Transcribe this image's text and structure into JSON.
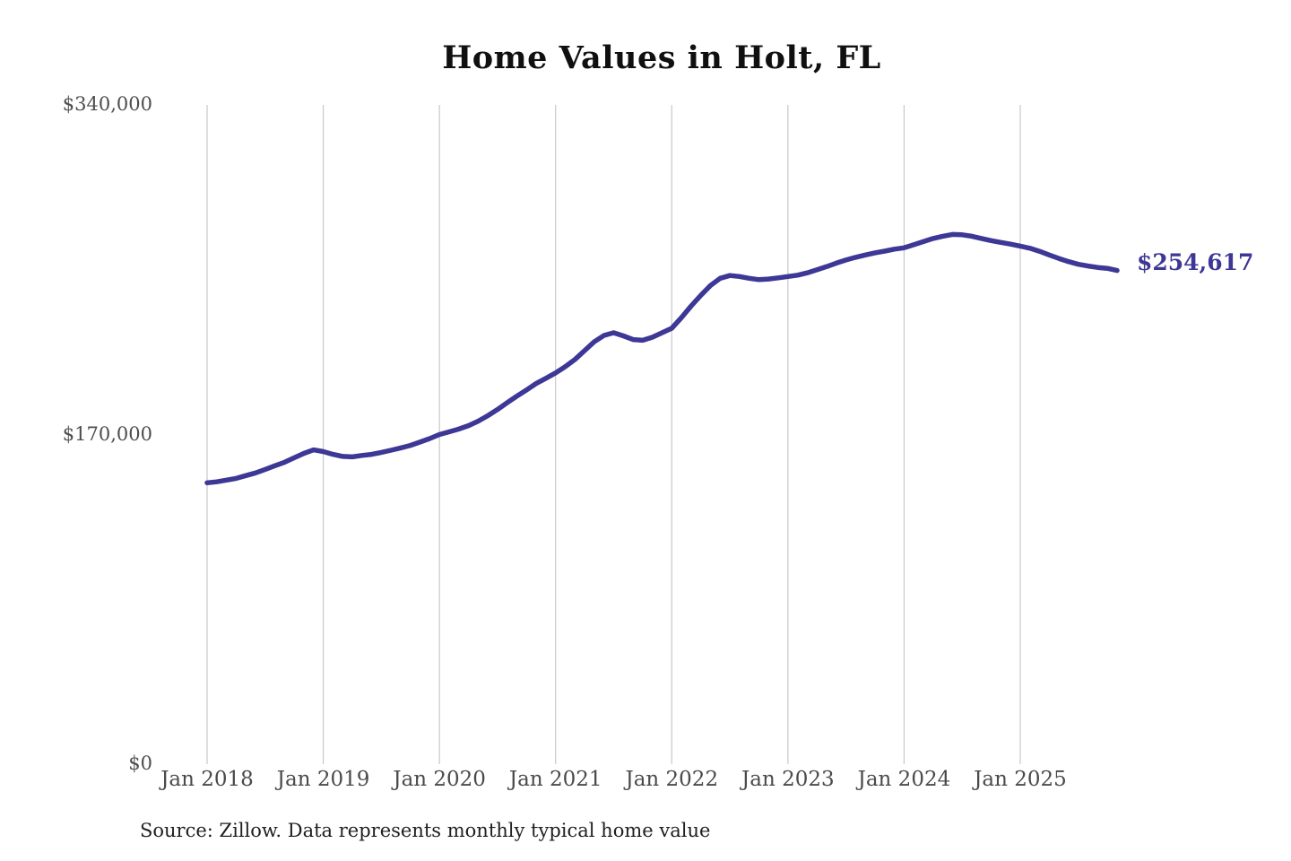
{
  "title": "Home Values in Holt, FL",
  "source_note": "Source: Zillow. Data represents monthly typical home value",
  "current_value_label": "$254,617",
  "colors": {
    "line": "#3d3795",
    "grid": "#c8c8c8",
    "title_text": "#101010",
    "tick_text": "#4a4a4a",
    "source_text": "#1f1f1f",
    "background": "#ffffff"
  },
  "chart_data": {
    "type": "line",
    "title": "Home Values in Holt, FL",
    "xlabel": "",
    "ylabel": "",
    "ylim": [
      0,
      340000
    ],
    "grid": "vertical-yearly-only",
    "legend_position": "none",
    "y_ticks": [
      {
        "value": 340000,
        "label": "$340,000"
      },
      {
        "value": 170000,
        "label": "$170,000"
      },
      {
        "value": 0,
        "label": "$0"
      }
    ],
    "x_ticks": [
      "Jan 2018",
      "Jan 2019",
      "Jan 2020",
      "Jan 2021",
      "Jan 2022",
      "Jan 2023",
      "Jan 2024",
      "Jan 2025"
    ],
    "series": [
      {
        "name": "Monthly typical home value",
        "start": "Jan 2018",
        "end": "Nov 2025",
        "frequency": "monthly",
        "last_value": 254617,
        "values": [
          145100,
          145600,
          146500,
          147400,
          148800,
          150200,
          152000,
          153900,
          155700,
          158000,
          160300,
          162100,
          161200,
          159800,
          158700,
          158500,
          159200,
          159800,
          160800,
          161900,
          163100,
          164400,
          166100,
          167900,
          170000,
          171400,
          172800,
          174600,
          176900,
          179700,
          182900,
          186400,
          189800,
          193000,
          196300,
          199000,
          201800,
          205000,
          208700,
          213300,
          217900,
          221100,
          222500,
          220900,
          219000,
          218600,
          220200,
          222500,
          224800,
          230300,
          236300,
          241800,
          246900,
          250600,
          252000,
          251500,
          250600,
          249900,
          250200,
          250800,
          251500,
          252200,
          253400,
          255000,
          256600,
          258400,
          260000,
          261400,
          262600,
          263700,
          264600,
          265600,
          266300,
          267900,
          269500,
          271100,
          272300,
          273200,
          273000,
          272300,
          271100,
          270000,
          269100,
          268200,
          267200,
          266100,
          264500,
          262600,
          260800,
          259200,
          257800,
          256900,
          256200,
          255700,
          254617
        ]
      }
    ]
  }
}
